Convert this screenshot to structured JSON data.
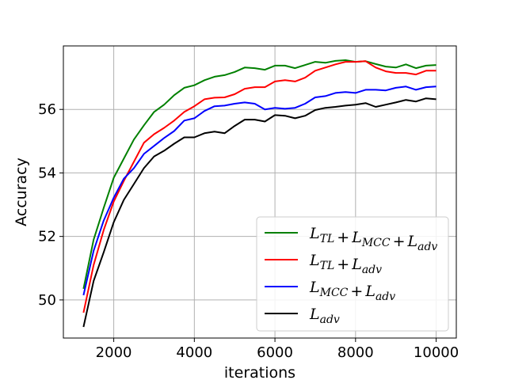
{
  "chart_data": {
    "type": "line",
    "xlabel": "iterations",
    "ylabel": "Accuracy",
    "xlim": [
      750,
      10500
    ],
    "ylim": [
      48.8,
      58.0
    ],
    "xticks": [
      2000,
      4000,
      6000,
      8000,
      10000
    ],
    "yticks": [
      50,
      52,
      54,
      56
    ],
    "xtick_labels": [
      "2000",
      "4000",
      "6000",
      "8000",
      "10000"
    ],
    "ytick_labels": [
      "50",
      "52",
      "54",
      "56"
    ],
    "grid": true,
    "legend_position": "lower-right",
    "x": [
      1250,
      1500,
      1750,
      2000,
      2250,
      2500,
      2750,
      3000,
      3250,
      3500,
      3750,
      4000,
      4250,
      4500,
      4750,
      5000,
      5250,
      5500,
      5750,
      6000,
      6250,
      6500,
      6750,
      7000,
      7250,
      7500,
      7750,
      8000,
      8250,
      8500,
      8750,
      9000,
      9250,
      9500,
      9750,
      10000
    ],
    "series": [
      {
        "name": "L_TL + L_MCC + L_adv",
        "legend_parts": [
          [
            "L",
            "TL"
          ],
          [
            "+"
          ],
          [
            "L",
            "MCC"
          ],
          [
            "+"
          ],
          [
            "L",
            "adv"
          ]
        ],
        "color": "#008000",
        "values": [
          50.35,
          51.9,
          52.9,
          53.85,
          54.45,
          55.05,
          55.5,
          55.92,
          56.15,
          56.45,
          56.68,
          56.76,
          56.92,
          57.03,
          57.08,
          57.18,
          57.32,
          57.3,
          57.25,
          57.38,
          57.38,
          57.3,
          57.4,
          57.5,
          57.47,
          57.53,
          57.55,
          57.5,
          57.52,
          57.43,
          57.35,
          57.32,
          57.42,
          57.3,
          57.38,
          57.4
        ]
      },
      {
        "name": "L_TL + L_adv",
        "legend_parts": [
          [
            "L",
            "TL"
          ],
          [
            "+"
          ],
          [
            "L",
            "adv"
          ]
        ],
        "color": "#ff0000",
        "values": [
          49.6,
          51.1,
          52.2,
          53.1,
          53.75,
          54.35,
          54.95,
          55.22,
          55.42,
          55.65,
          55.92,
          56.1,
          56.32,
          56.37,
          56.38,
          56.48,
          56.65,
          56.7,
          56.7,
          56.88,
          56.92,
          56.88,
          57.0,
          57.22,
          57.32,
          57.42,
          57.5,
          57.5,
          57.52,
          57.32,
          57.2,
          57.15,
          57.15,
          57.1,
          57.22,
          57.22
        ]
      },
      {
        "name": "L_MCC + L_adv",
        "legend_parts": [
          [
            "L",
            "MCC"
          ],
          [
            "+"
          ],
          [
            "L",
            "adv"
          ]
        ],
        "color": "#0000ff",
        "values": [
          50.15,
          51.55,
          52.5,
          53.22,
          53.82,
          54.15,
          54.6,
          54.85,
          55.1,
          55.32,
          55.65,
          55.72,
          55.95,
          56.1,
          56.12,
          56.18,
          56.22,
          56.18,
          56.0,
          56.05,
          56.02,
          56.05,
          56.18,
          56.38,
          56.42,
          56.52,
          56.55,
          56.52,
          56.62,
          56.62,
          56.6,
          56.68,
          56.72,
          56.62,
          56.7,
          56.72
        ]
      },
      {
        "name": "L_adv",
        "legend_parts": [
          [
            "L",
            "adv"
          ]
        ],
        "color": "#000000",
        "values": [
          49.15,
          50.6,
          51.5,
          52.45,
          53.15,
          53.65,
          54.15,
          54.52,
          54.7,
          54.92,
          55.12,
          55.12,
          55.25,
          55.3,
          55.25,
          55.48,
          55.68,
          55.68,
          55.62,
          55.82,
          55.8,
          55.72,
          55.8,
          55.98,
          56.05,
          56.08,
          56.12,
          56.15,
          56.2,
          56.08,
          56.15,
          56.22,
          56.3,
          56.25,
          56.35,
          56.32
        ]
      }
    ]
  }
}
